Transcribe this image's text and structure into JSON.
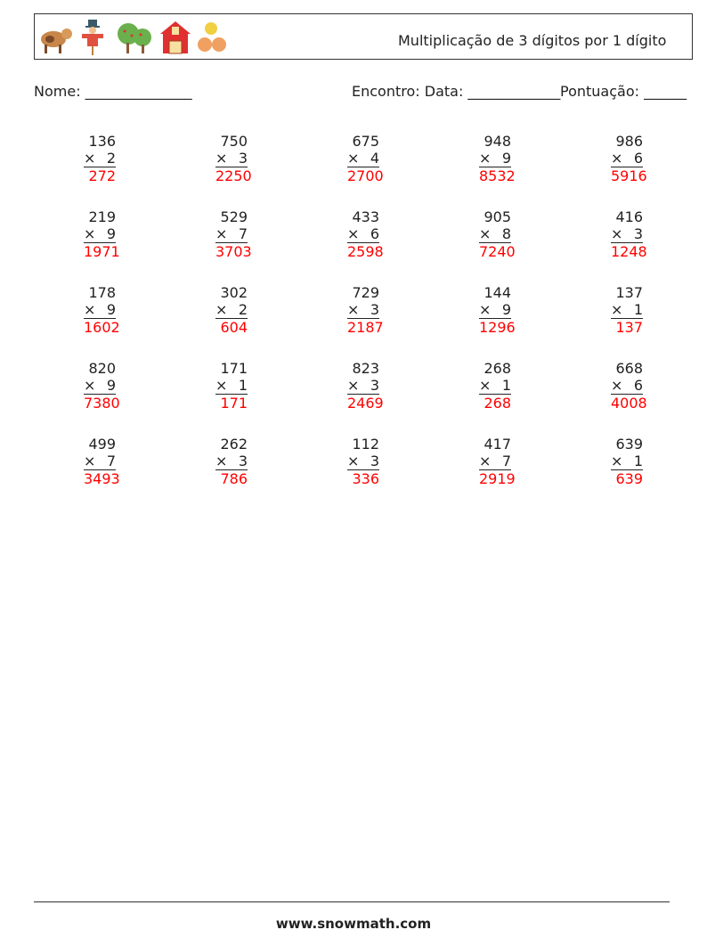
{
  "header": {
    "title": "Multiplicação de 3 dígitos por 1 dígito",
    "icons": [
      "cow-icon",
      "scarecrow-icon",
      "trees-icon",
      "barn-icon",
      "hay-bales-icon"
    ]
  },
  "fields": {
    "name": "Nome: _______________",
    "date": "Encontro: Data: _____________",
    "score": "Pontuação: ______"
  },
  "operator": "×",
  "problems": [
    [
      [
        "136",
        "2",
        "272"
      ],
      [
        "750",
        "3",
        "2250"
      ],
      [
        "675",
        "4",
        "2700"
      ],
      [
        "948",
        "9",
        "8532"
      ],
      [
        "986",
        "6",
        "5916"
      ]
    ],
    [
      [
        "219",
        "9",
        "1971"
      ],
      [
        "529",
        "7",
        "3703"
      ],
      [
        "433",
        "6",
        "2598"
      ],
      [
        "905",
        "8",
        "7240"
      ],
      [
        "416",
        "3",
        "1248"
      ]
    ],
    [
      [
        "178",
        "9",
        "1602"
      ],
      [
        "302",
        "2",
        "604"
      ],
      [
        "729",
        "3",
        "2187"
      ],
      [
        "144",
        "9",
        "1296"
      ],
      [
        "137",
        "1",
        "137"
      ]
    ],
    [
      [
        "820",
        "9",
        "7380"
      ],
      [
        "171",
        "1",
        "171"
      ],
      [
        "823",
        "3",
        "2469"
      ],
      [
        "268",
        "1",
        "268"
      ],
      [
        "668",
        "6",
        "4008"
      ]
    ],
    [
      [
        "499",
        "7",
        "3493"
      ],
      [
        "262",
        "3",
        "786"
      ],
      [
        "112",
        "3",
        "336"
      ],
      [
        "417",
        "7",
        "2919"
      ],
      [
        "639",
        "1",
        "639"
      ]
    ]
  ],
  "colors": {
    "answer": "#ff0000"
  },
  "footer": {
    "website": "www.snowmath.com"
  }
}
